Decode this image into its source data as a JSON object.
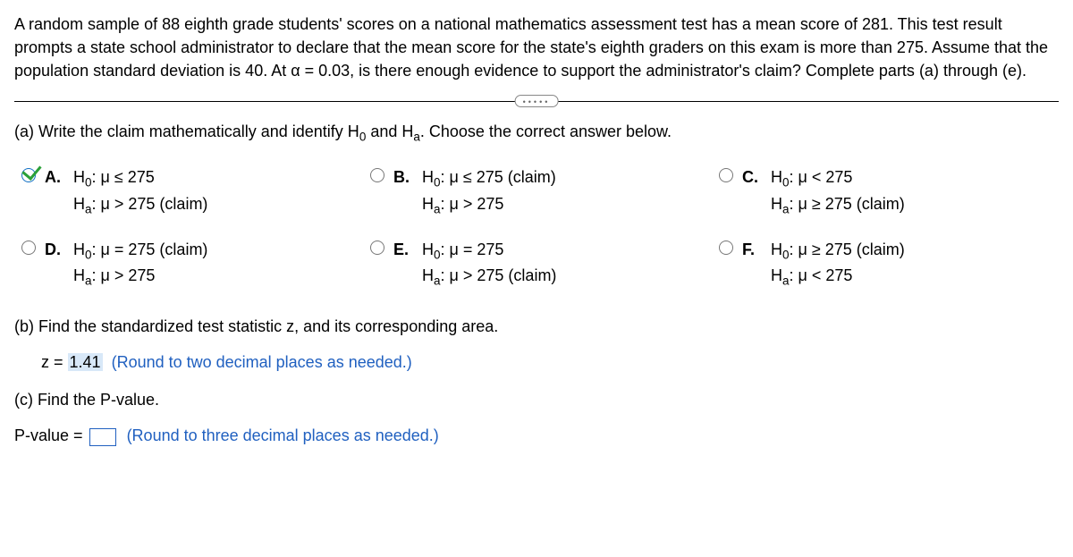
{
  "problem": "A random sample of 88 eighth grade students' scores on a national mathematics assessment test has a mean score of 281. This test result prompts a state school administrator to declare that the mean score for the state's eighth graders on this exam is more than 275. Assume that the population standard deviation is 40. At α = 0.03, is there enough evidence to support the administrator's claim? Complete parts (a) through (e).",
  "partA": {
    "prompt_pre": "(a) Write the claim mathematically and identify H",
    "prompt_mid": " and H",
    "prompt_post": ". Choose the correct answer below.",
    "sub0": "0",
    "subA": "a"
  },
  "options": {
    "A": {
      "letter": "A.",
      "h0": "H",
      "h0sub": "0",
      "h0rest": ": μ ≤ 275",
      "ha": "H",
      "hasub": "a",
      "harest": ": μ > 275 (claim)",
      "checked": true
    },
    "B": {
      "letter": "B.",
      "h0": "H",
      "h0sub": "0",
      "h0rest": ": μ ≤ 275 (claim)",
      "ha": "H",
      "hasub": "a",
      "harest": ": μ > 275",
      "checked": false
    },
    "C": {
      "letter": "C.",
      "h0": "H",
      "h0sub": "0",
      "h0rest": ": μ < 275",
      "ha": "H",
      "hasub": "a",
      "harest": ": μ ≥ 275 (claim)",
      "checked": false
    },
    "D": {
      "letter": "D.",
      "h0": "H",
      "h0sub": "0",
      "h0rest": ": μ = 275 (claim)",
      "ha": "H",
      "hasub": "a",
      "harest": ": μ > 275",
      "checked": false
    },
    "E": {
      "letter": "E.",
      "h0": "H",
      "h0sub": "0",
      "h0rest": ": μ = 275",
      "ha": "H",
      "hasub": "a",
      "harest": ": μ > 275 (claim)",
      "checked": false
    },
    "F": {
      "letter": "F.",
      "h0": "H",
      "h0sub": "0",
      "h0rest": ": μ ≥ 275 (claim)",
      "ha": "H",
      "hasub": "a",
      "harest": ": μ < 275",
      "checked": false
    }
  },
  "partB": {
    "prompt": "(b) Find the standardized test statistic z, and its corresponding area.",
    "z_label": "z = ",
    "z_value": "1.41",
    "z_hint": "(Round to two decimal places as needed.)"
  },
  "partC": {
    "prompt": "(c) Find the P-value.",
    "p_label": "P-value = ",
    "p_hint": "(Round to three decimal places as needed.)"
  }
}
